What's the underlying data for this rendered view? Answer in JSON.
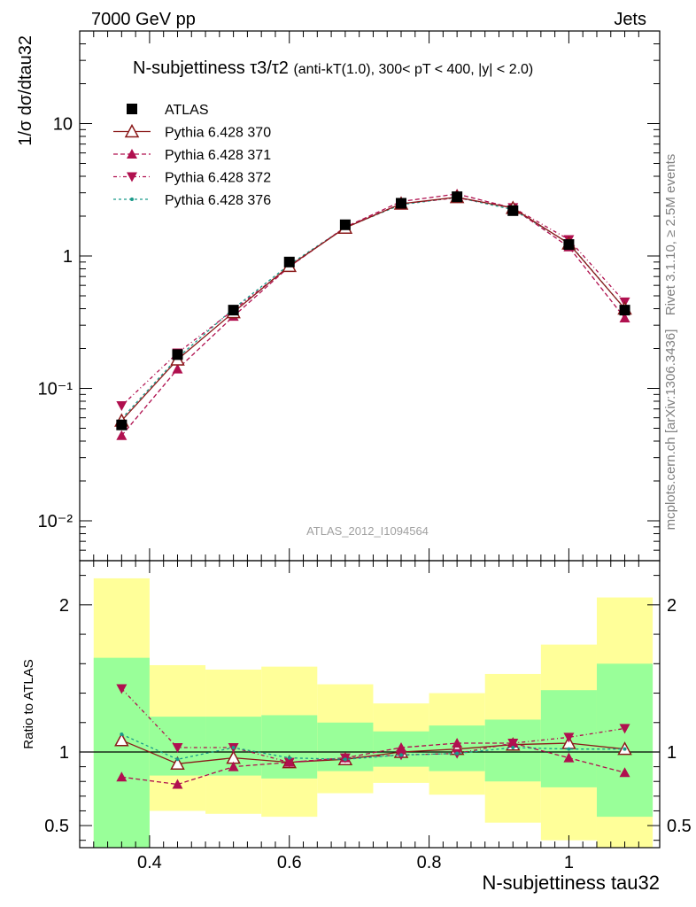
{
  "header": {
    "left": "7000 GeV pp",
    "right": "Jets"
  },
  "side_labels": {
    "rivet": "Rivet 3.1.10, ≥ 2.5M events",
    "source": "mcplots.cern.ch [arXiv:1306.3436]"
  },
  "watermark": "ATLAS_2012_I1094564",
  "colors": {
    "data": "#000000",
    "pythia370": "#8b1a1a",
    "pythia371": "#b0104f",
    "pythia372": "#b0104f",
    "pythia376": "#1a9a8a",
    "band_inner": "#99ff99",
    "band_outer": "#ffff99"
  },
  "chart_data": [
    {
      "type": "scatter",
      "title_main": "N-subjettiness τ3/τ2",
      "title_note": "(anti-kT(1.0), 300< pT < 400, |y| < 2.0)",
      "ylabel": "1/σ dσ/dtau32",
      "yscale": "log",
      "ylim": [
        0.005,
        50
      ],
      "xlim": [
        0.3,
        1.13
      ],
      "y_ticks": [
        "10⁻²",
        "10⁻¹",
        "1",
        "10"
      ],
      "legend_position": "top-left",
      "x": [
        0.36,
        0.44,
        0.52,
        0.6,
        0.68,
        0.76,
        0.84,
        0.92,
        1.0,
        1.08
      ],
      "series": [
        {
          "name": "ATLAS",
          "values": [
            0.053,
            0.18,
            0.39,
            0.9,
            1.72,
            2.5,
            2.8,
            2.2,
            1.22,
            0.39
          ]
        },
        {
          "name": "Pythia 6.428 370",
          "values": [
            0.057,
            0.165,
            0.375,
            0.84,
            1.63,
            2.48,
            2.78,
            2.3,
            1.24,
            0.4
          ]
        },
        {
          "name": "Pythia 6.428 371",
          "values": [
            0.044,
            0.14,
            0.35,
            0.83,
            1.65,
            2.58,
            2.94,
            2.3,
            1.17,
            0.34
          ]
        },
        {
          "name": "Pythia 6.428 372",
          "values": [
            0.074,
            0.185,
            0.39,
            0.83,
            1.65,
            2.48,
            2.75,
            2.32,
            1.33,
            0.45
          ]
        },
        {
          "name": "Pythia 6.428 376",
          "values": [
            0.059,
            0.17,
            0.4,
            0.86,
            1.64,
            2.44,
            2.77,
            2.24,
            1.25,
            0.4
          ]
        }
      ]
    },
    {
      "type": "scatter",
      "xlabel": "N-subjettiness tau32",
      "ylabel": "Ratio to ATLAS",
      "ylim": [
        0.35,
        2.3
      ],
      "x_ticks": [
        "0.4",
        "0.6",
        "0.8",
        "1"
      ],
      "y_ticks": [
        "0.5",
        "1",
        "2"
      ],
      "x": [
        0.36,
        0.44,
        0.52,
        0.6,
        0.68,
        0.76,
        0.84,
        0.92,
        1.0,
        1.08
      ],
      "bin_edges": [
        0.32,
        0.4,
        0.48,
        0.56,
        0.64,
        0.72,
        0.8,
        0.88,
        0.96,
        1.04,
        1.12
      ],
      "band_inner": {
        "low": [
          0.32,
          0.84,
          0.84,
          0.82,
          0.87,
          0.9,
          0.87,
          0.8,
          0.76,
          0.56
        ],
        "high": [
          1.64,
          1.24,
          1.24,
          1.25,
          1.2,
          1.14,
          1.18,
          1.22,
          1.42,
          1.6
        ]
      },
      "band_outer": {
        "low": [
          0.32,
          0.6,
          0.58,
          0.56,
          0.72,
          0.79,
          0.71,
          0.52,
          0.4,
          0.34
        ],
        "high": [
          2.18,
          1.59,
          1.56,
          1.58,
          1.46,
          1.33,
          1.4,
          1.53,
          1.73,
          2.05
        ]
      },
      "series": [
        {
          "name": "Pythia 6.428 370",
          "values": [
            1.08,
            0.92,
            0.96,
            0.93,
            0.95,
            1.0,
            1.02,
            1.05,
            1.06,
            1.02
          ]
        },
        {
          "name": "Pythia 6.428 371",
          "values": [
            0.83,
            0.78,
            0.9,
            0.93,
            0.96,
            1.03,
            1.06,
            1.06,
            0.96,
            0.86
          ]
        },
        {
          "name": "Pythia 6.428 372",
          "values": [
            1.43,
            1.03,
            1.03,
            0.93,
            0.96,
            0.98,
            0.99,
            1.06,
            1.1,
            1.16
          ]
        },
        {
          "name": "Pythia 6.428 376",
          "values": [
            1.12,
            0.95,
            1.03,
            0.96,
            0.95,
            0.98,
            0.99,
            1.03,
            1.02,
            1.02
          ]
        }
      ]
    }
  ]
}
